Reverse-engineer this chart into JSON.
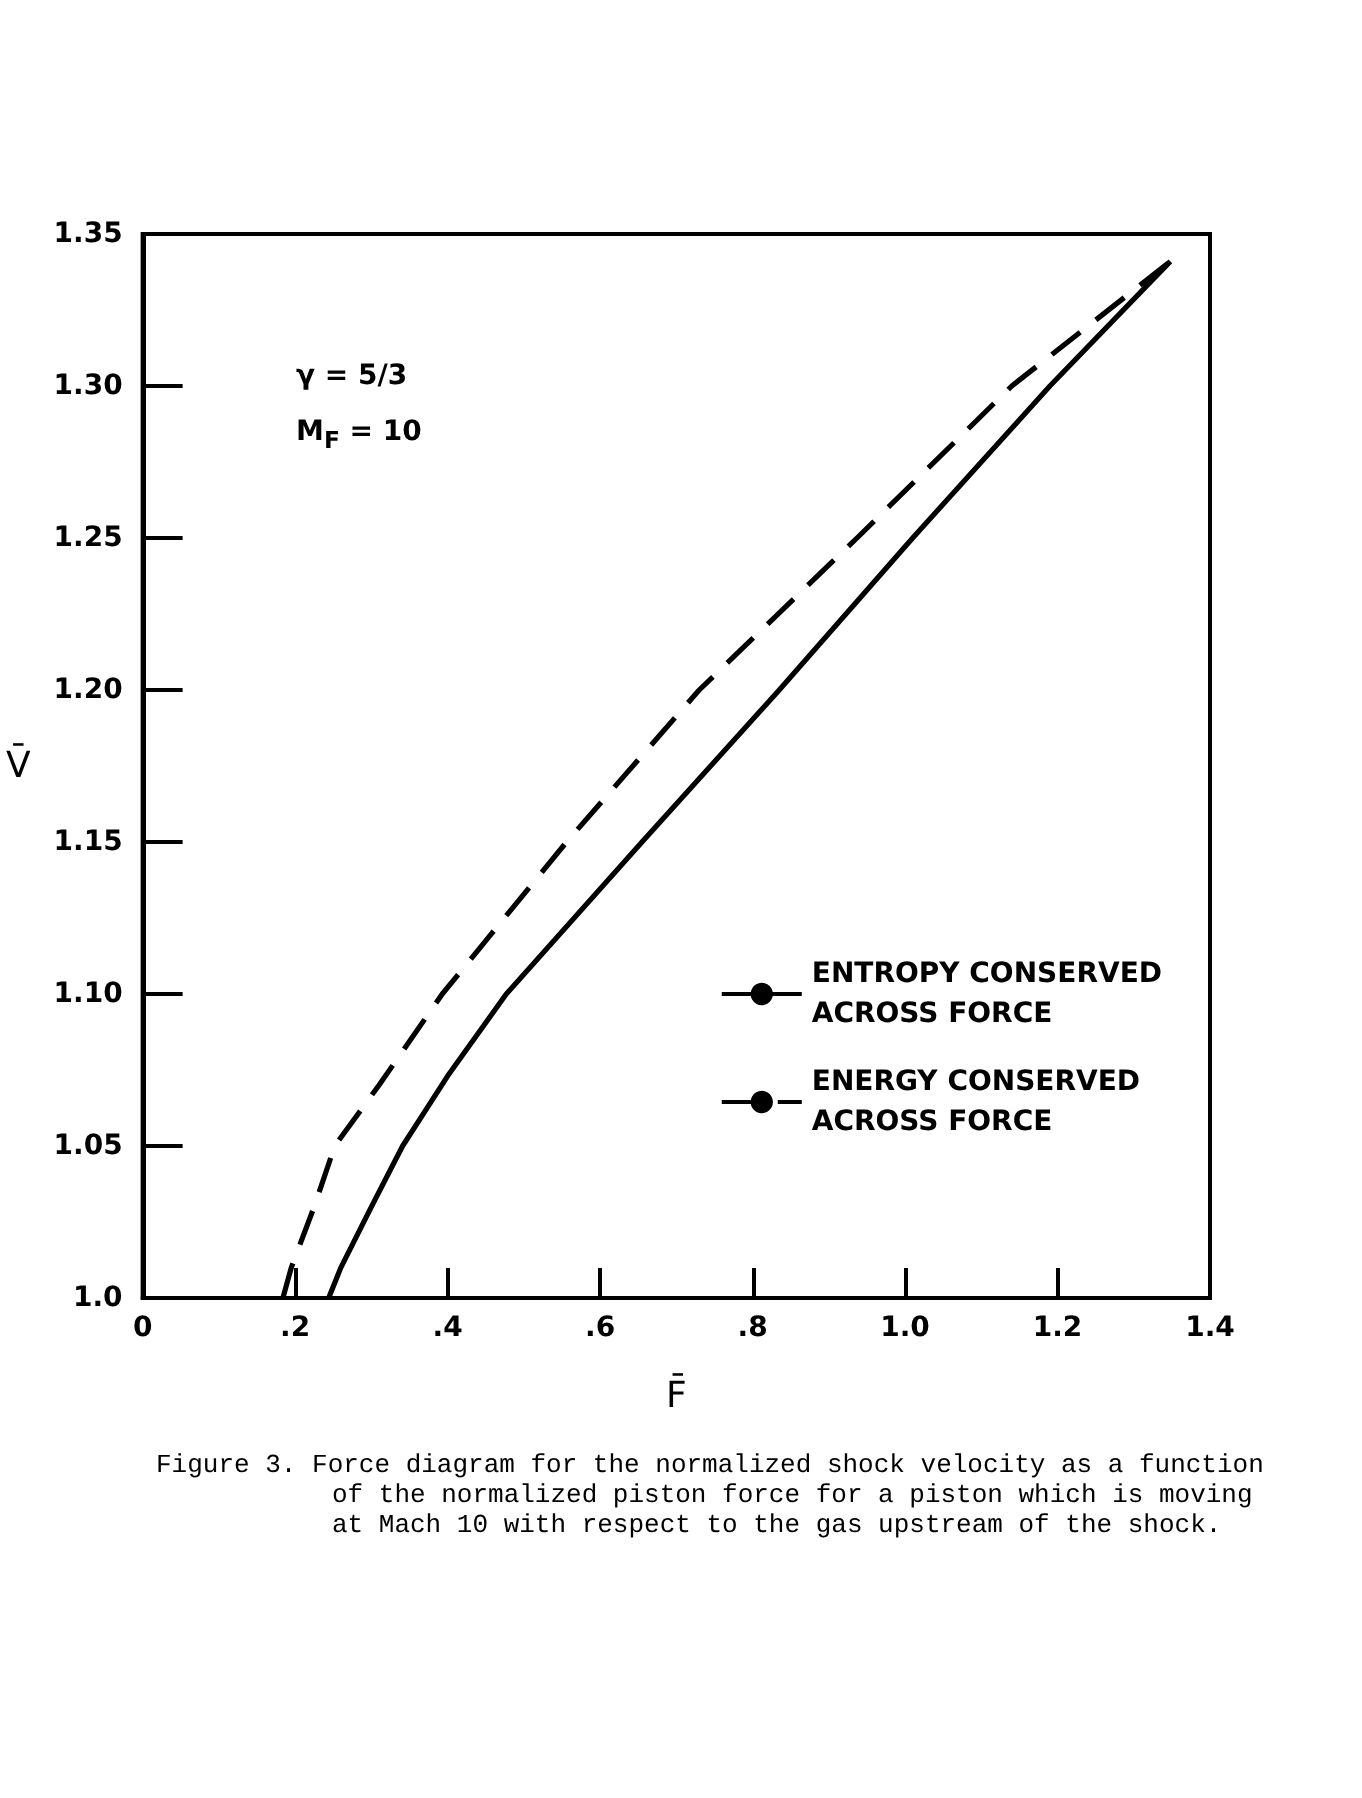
{
  "chart_data": {
    "type": "line",
    "xlabel": "F̄",
    "ylabel": "V̄",
    "xlim": [
      0,
      1.4
    ],
    "ylim": [
      1.0,
      1.35
    ],
    "xticks": [
      0,
      {
        "value": 0.2,
        "label": ".2"
      },
      {
        "value": 0.4,
        "label": ".4"
      },
      {
        "value": 0.6,
        "label": ".6"
      },
      {
        "value": 0.8,
        "label": ".8"
      },
      {
        "value": 1.0,
        "label": "1.0"
      },
      {
        "value": 1.2,
        "label": "1.2"
      },
      {
        "value": 1.4,
        "label": "1.4"
      }
    ],
    "yticks": [
      {
        "value": 1.0,
        "label": "1.0"
      },
      1.05,
      {
        "value": 1.1,
        "label": "1.10"
      },
      1.15,
      {
        "value": 1.2,
        "label": "1.20"
      },
      1.25,
      {
        "value": 1.3,
        "label": "1.30"
      },
      1.35
    ],
    "grid": false,
    "legend": "right",
    "marker": "none",
    "series": [
      {
        "name": "ENTROPY CONSERVED\nACROSS FORCE",
        "color": "#000000",
        "line_style": "solid",
        "x": [
          0.244,
          0.26,
          0.3,
          0.341,
          0.4,
          0.477,
          0.655,
          0.835,
          1.01,
          1.19,
          1.348
        ],
        "values": [
          1.0,
          1.01,
          1.03,
          1.05,
          1.073,
          1.1,
          1.15,
          1.2,
          1.25,
          1.3,
          1.341
        ]
      },
      {
        "name": "ENERGY CONSERVED\nACROSS FORCE",
        "color": "#000000",
        "line_style": "dashed",
        "x": [
          0.184,
          0.195,
          0.225,
          0.252,
          0.31,
          0.393,
          0.556,
          0.73,
          0.937,
          1.14,
          1.348
        ],
        "values": [
          1.0,
          1.01,
          1.03,
          1.05,
          1.07,
          1.1,
          1.15,
          1.2,
          1.25,
          1.3,
          1.341
        ]
      }
    ],
    "annotations": [
      "γ = 5/3",
      "M$_{F}$ = 10",
      "Figure 3.  Force diagram for the normalized shock velocity as a function of the normalized piston force for a piston which is moving at Mach 10 with respect to the gas upstream of the shock."
    ]
  }
}
